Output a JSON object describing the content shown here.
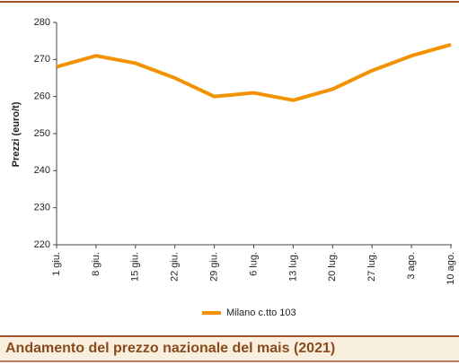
{
  "chart_data": {
    "type": "line",
    "title": "Andamento del prezzo nazionale del mais (2021)",
    "y_label": "Prezzi (euro/t)",
    "categories": [
      "1 giu.",
      "8 giu.",
      "15 giu.",
      "22 giu.",
      "29 giu.",
      "6 lug.",
      "13 lug.",
      "20 lug.",
      "27 lug.",
      "3 ago.",
      "10 ago."
    ],
    "series": [
      {
        "name": "Milano  c.tto 103",
        "color": "#f39200",
        "values": [
          268,
          271,
          269,
          265,
          260,
          261,
          259,
          262,
          267,
          271,
          274
        ]
      }
    ],
    "ylim": [
      220,
      280
    ],
    "yticks": [
      220,
      230,
      240,
      250,
      260,
      270,
      280
    ],
    "grid": false
  }
}
